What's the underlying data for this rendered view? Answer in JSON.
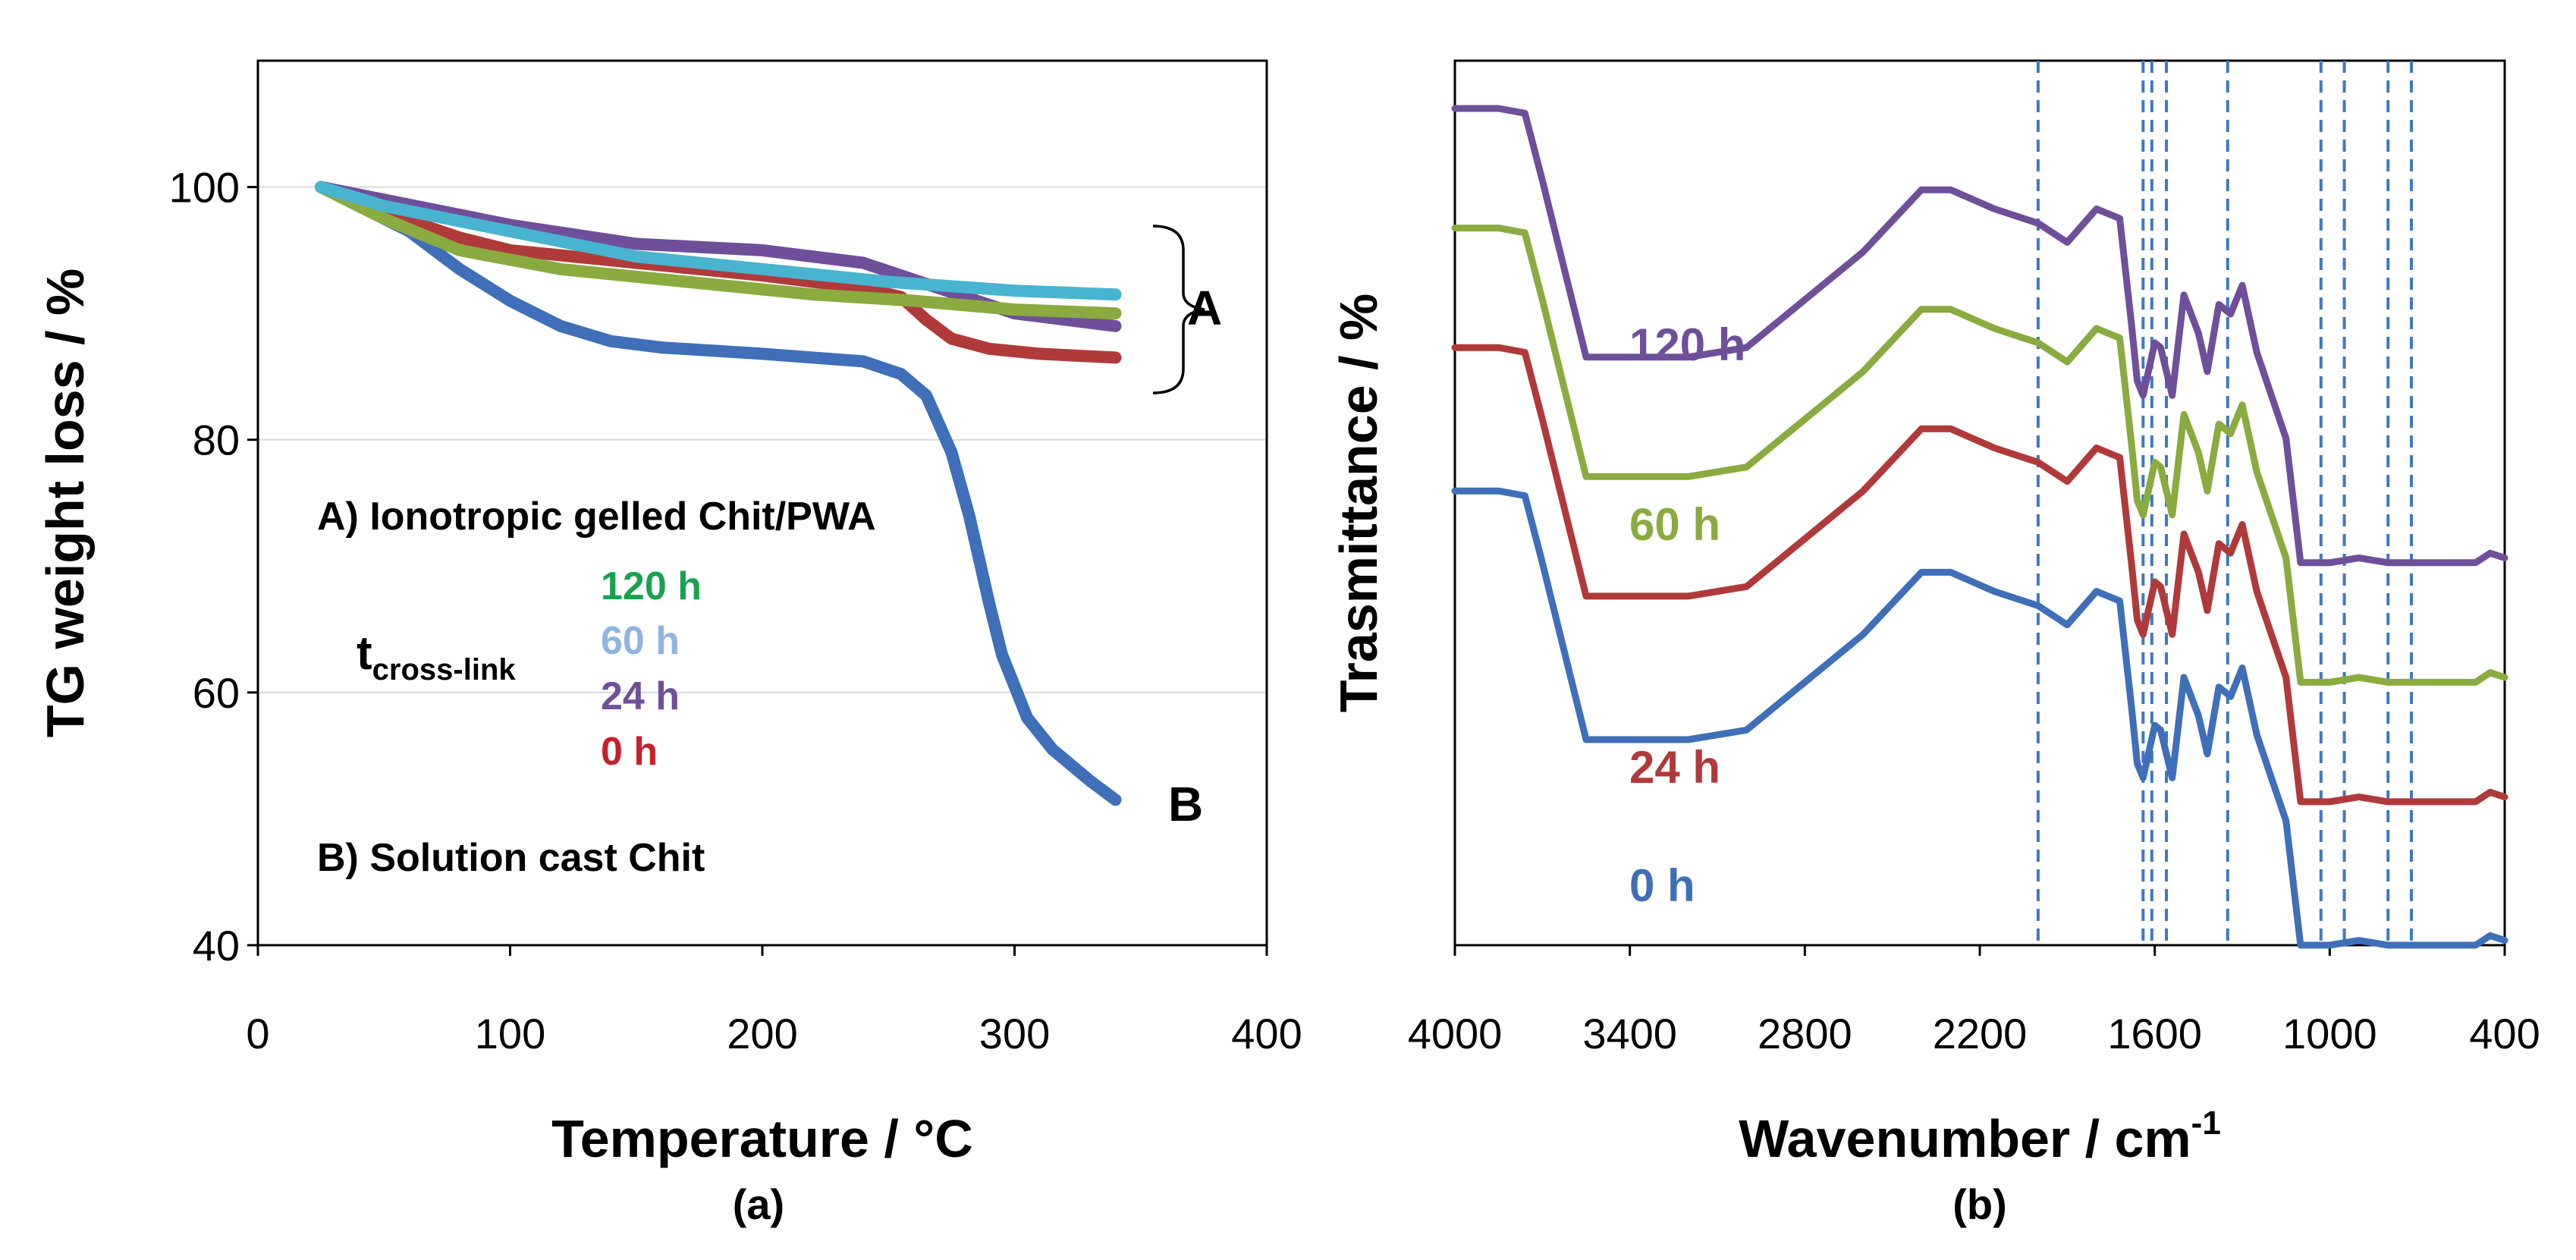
{
  "colors": {
    "blue": "#3f6fb8",
    "red": "#b03a3a",
    "purple": "#6f4f9a",
    "green": "#89ab3f",
    "cyan": "#48b4cf",
    "legend_green": "#1aa150",
    "legend_lightblue": "#8fb4e3",
    "legend_purple": "#6f4f9a",
    "legend_red": "#c8202b",
    "dashed": "#3f78c0"
  },
  "chart_data": [
    {
      "type": "line",
      "panel_label": "(a)",
      "xlabel": "Temperature / °C",
      "ylabel": "TG weight loss / %",
      "xlim": [
        0,
        400
      ],
      "ylim": [
        40,
        110
      ],
      "xticks": [
        "0",
        "100",
        "200",
        "300",
        "400"
      ],
      "yticks": [
        "40",
        "60",
        "80",
        "100"
      ],
      "series": [
        {
          "name": "B",
          "color": "blue",
          "x": [
            25,
            60,
            80,
            100,
            120,
            140,
            160,
            200,
            240,
            255,
            265,
            275,
            282,
            290,
            295,
            305,
            315,
            330,
            340
          ],
          "y": [
            100,
            96.5,
            93.5,
            91,
            89,
            87.8,
            87.3,
            86.8,
            86.2,
            85.2,
            83.5,
            79,
            74,
            67,
            63,
            58,
            55.5,
            53,
            51.5
          ]
        },
        {
          "name": "0 h",
          "color": "red",
          "x": [
            25,
            50,
            80,
            100,
            150,
            200,
            240,
            255,
            265,
            275,
            290,
            310,
            340
          ],
          "y": [
            100,
            98,
            96,
            95,
            94,
            93,
            92,
            91.3,
            89.5,
            88,
            87.2,
            86.8,
            86.5
          ]
        },
        {
          "name": "24 h",
          "color": "purple",
          "x": [
            25,
            50,
            100,
            150,
            200,
            240,
            270,
            300,
            320,
            340
          ],
          "y": [
            100,
            99,
            97,
            95.5,
            95,
            94,
            92,
            90,
            89.5,
            89
          ]
        },
        {
          "name": "120 h",
          "color": "green",
          "x": [
            25,
            50,
            80,
            120,
            170,
            220,
            260,
            300,
            340
          ],
          "y": [
            100,
            97.5,
            95,
            93.5,
            92.5,
            91.5,
            91,
            90.3,
            90
          ]
        },
        {
          "name": "60 h",
          "color": "cyan",
          "x": [
            25,
            50,
            100,
            150,
            200,
            250,
            300,
            340
          ],
          "y": [
            100,
            98.5,
            96.5,
            94.5,
            93.5,
            92.5,
            91.8,
            91.5
          ]
        }
      ],
      "annotations": {
        "group_A": "A",
        "end_B": "B",
        "legend_A": "A) Ionotropic gelled Chit/PWA",
        "legend_B": "B) Solution cast Chit",
        "t_label_main": "t",
        "t_label_sub": "cross-link",
        "legend_items": [
          "120 h",
          "60 h",
          "24 h",
          "0 h"
        ]
      }
    },
    {
      "type": "line",
      "panel_label": "(b)",
      "xlabel_main": "Wavenumber / cm",
      "xlabel_sup": "-1",
      "ylabel": "Trasmittance / %",
      "xlim": [
        4000,
        400
      ],
      "xticks": [
        "4000",
        "3400",
        "2800",
        "2200",
        "1600",
        "1000",
        "400"
      ],
      "dashed_lines_cm1": [
        2000,
        1640,
        1610,
        1560,
        1350,
        1030,
        950,
        800,
        720
      ],
      "series": [
        {
          "name": "120 h",
          "color": "purple",
          "offset": 80,
          "x": [
            4000,
            3850,
            3760,
            3700,
            3550,
            3200,
            3000,
            2600,
            2400,
            2300,
            2150,
            2000,
            1900,
            1800,
            1720,
            1680,
            1660,
            1640,
            1600,
            1580,
            1540,
            1500,
            1450,
            1420,
            1380,
            1340,
            1300,
            1250,
            1200,
            1150,
            1100,
            1000,
            900,
            800,
            700,
            600,
            500,
            450,
            400
          ],
          "y": [
            95,
            95,
            94,
            80,
            43,
            43,
            45,
            65,
            78,
            78,
            74,
            71,
            67,
            74,
            72,
            50,
            38,
            35,
            46,
            45,
            35,
            56,
            48,
            40,
            54,
            52,
            58,
            44,
            35,
            26,
            0,
            0,
            1,
            0,
            0,
            0,
            0,
            2,
            1
          ]
        },
        {
          "name": "60 h",
          "color": "green",
          "offset": 55,
          "x": [
            4000,
            3850,
            3760,
            3700,
            3550,
            3200,
            3000,
            2600,
            2400,
            2300,
            2150,
            2000,
            1900,
            1800,
            1720,
            1680,
            1660,
            1640,
            1600,
            1580,
            1540,
            1500,
            1450,
            1420,
            1380,
            1340,
            1300,
            1250,
            1200,
            1150,
            1100,
            1000,
            900,
            800,
            700,
            600,
            500,
            450,
            400
          ],
          "y": [
            95,
            95,
            94,
            80,
            43,
            43,
            45,
            65,
            78,
            78,
            74,
            71,
            67,
            74,
            72,
            50,
            38,
            35,
            46,
            45,
            35,
            56,
            48,
            40,
            54,
            52,
            58,
            44,
            35,
            26,
            0,
            0,
            1,
            0,
            0,
            0,
            0,
            2,
            1
          ]
        },
        {
          "name": "24 h",
          "color": "red",
          "offset": 30,
          "x": [
            4000,
            3850,
            3760,
            3700,
            3550,
            3200,
            3000,
            2600,
            2400,
            2300,
            2150,
            2000,
            1900,
            1800,
            1720,
            1680,
            1660,
            1640,
            1600,
            1580,
            1540,
            1500,
            1450,
            1420,
            1380,
            1340,
            1300,
            1250,
            1200,
            1150,
            1100,
            1000,
            900,
            800,
            700,
            600,
            500,
            450,
            400
          ],
          "y": [
            95,
            95,
            94,
            80,
            43,
            43,
            45,
            65,
            78,
            78,
            74,
            71,
            67,
            74,
            72,
            50,
            38,
            35,
            46,
            45,
            35,
            56,
            48,
            40,
            54,
            52,
            58,
            44,
            35,
            26,
            0,
            0,
            1,
            0,
            0,
            0,
            0,
            2,
            1
          ]
        },
        {
          "name": "0 h",
          "color": "blue",
          "offset": 0,
          "x": [
            4000,
            3850,
            3760,
            3700,
            3550,
            3200,
            3000,
            2600,
            2400,
            2300,
            2150,
            2000,
            1900,
            1800,
            1720,
            1680,
            1660,
            1640,
            1600,
            1580,
            1540,
            1500,
            1450,
            1420,
            1380,
            1340,
            1300,
            1250,
            1200,
            1150,
            1100,
            1000,
            900,
            800,
            700,
            600,
            500,
            450,
            400
          ],
          "y": [
            95,
            95,
            94,
            80,
            43,
            43,
            45,
            65,
            78,
            78,
            74,
            71,
            67,
            74,
            72,
            50,
            38,
            35,
            46,
            45,
            35,
            56,
            48,
            40,
            54,
            52,
            58,
            44,
            35,
            26,
            0,
            0,
            1,
            0,
            0,
            0,
            0,
            2,
            1
          ]
        }
      ],
      "labels": [
        "120 h",
        "60 h",
        "24 h",
        "0 h"
      ]
    }
  ]
}
